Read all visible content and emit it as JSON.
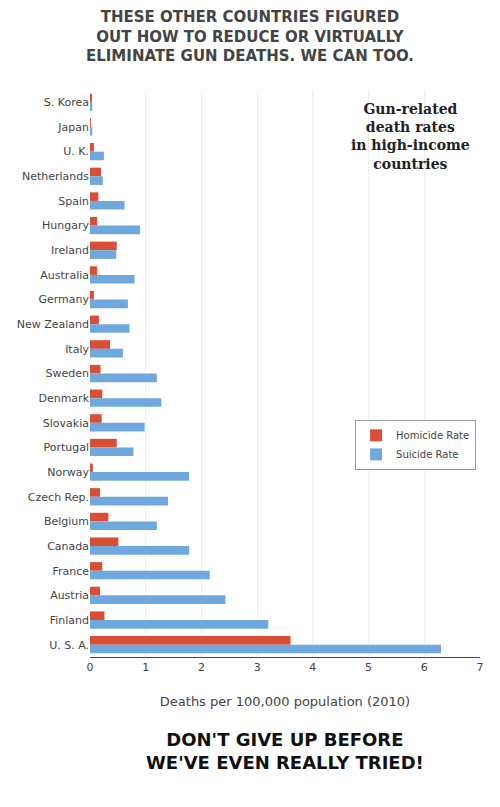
{
  "chart_data": {
    "type": "bar",
    "orientation": "horizontal",
    "title": "THESE OTHER COUNTRIES FIGURED\nOUT HOW TO REDUCE OR VIRTUALLY\nELIMINATE GUN DEATHS. WE CAN TOO.",
    "annotations": [
      "Gun-related\ndeath rates\nin high-income\ncountries",
      "DON'T GIVE UP BEFORE\nWE'VE EVEN REALLY TRIED!"
    ],
    "xlabel": "Deaths per 100,000 population (2010)",
    "categories": [
      "S. Korea",
      "Japan",
      "U. K.",
      "Netherlands",
      "Spain",
      "Hungary",
      "Ireland",
      "Australia",
      "Germany",
      "New Zealand",
      "Italy",
      "Sweden",
      "Denmark",
      "Slovakia",
      "Portugal",
      "Norway",
      "Czech Rep.",
      "Belgium",
      "Canada",
      "France",
      "Austria",
      "Finland",
      "U. S. A."
    ],
    "series": [
      {
        "name": "Homicide Rate",
        "color": "#d94f35",
        "values": [
          0.03,
          0.01,
          0.07,
          0.2,
          0.15,
          0.13,
          0.48,
          0.13,
          0.07,
          0.16,
          0.36,
          0.19,
          0.22,
          0.21,
          0.48,
          0.05,
          0.18,
          0.33,
          0.51,
          0.22,
          0.18,
          0.26,
          3.6
        ]
      },
      {
        "name": "Suicide Rate",
        "color": "#6fa8dc",
        "values": [
          0.04,
          0.04,
          0.25,
          0.23,
          0.62,
          0.9,
          0.47,
          0.8,
          0.68,
          0.71,
          0.59,
          1.2,
          1.28,
          0.98,
          0.78,
          1.78,
          1.4,
          1.2,
          1.78,
          2.15,
          2.43,
          3.2,
          6.3
        ]
      }
    ],
    "xlim": [
      0,
      7
    ],
    "xticks": [
      0,
      1,
      2,
      3,
      4,
      5,
      6,
      7
    ],
    "grid": true,
    "legend": "lower right"
  }
}
